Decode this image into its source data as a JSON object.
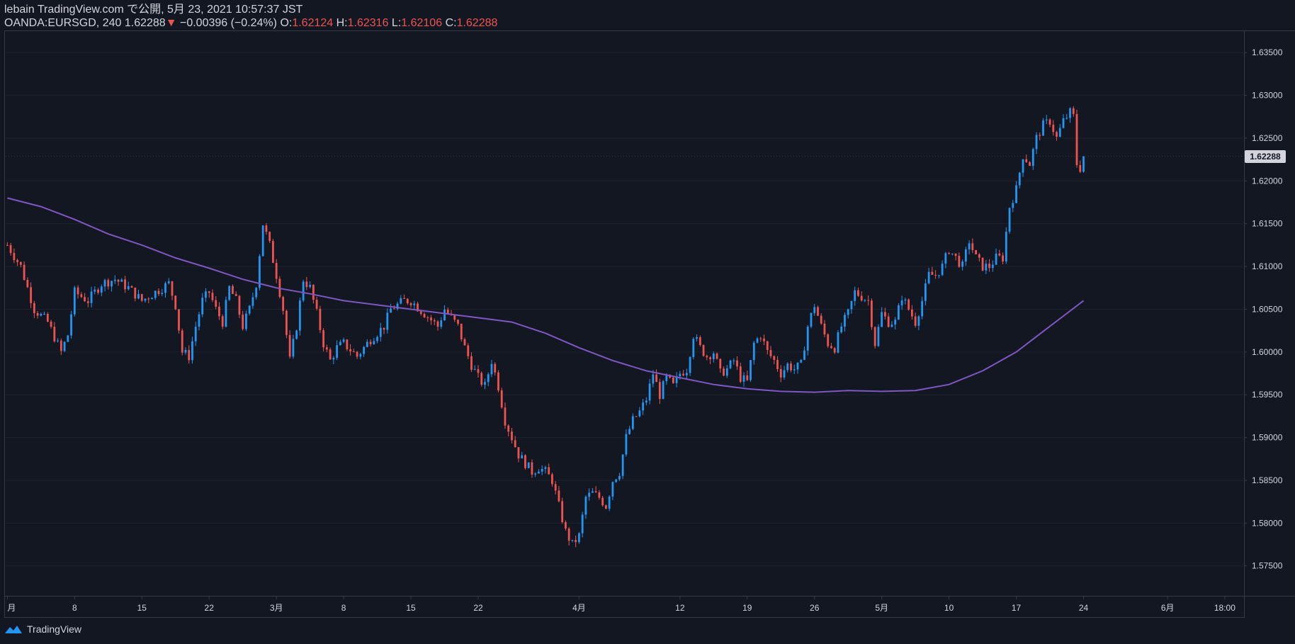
{
  "header": {
    "publisher_line": "lebain TradingView.com で公開, 5月 23, 2021 10:57:37 JST",
    "symbol": "OANDA:EURSGD, 240",
    "last_price": "1.62288",
    "change_arrow": "▼",
    "change": "−0.00396 (−0.24%)",
    "o_label": "O:",
    "o_value": "1.62124",
    "h_label": "H:",
    "h_value": "1.62316",
    "l_label": "L:",
    "l_value": "1.62106",
    "c_label": "C:",
    "c_value": "1.62288"
  },
  "footer": {
    "brand": "TradingView"
  },
  "colors": {
    "background": "#131722",
    "up_candle": "#2196f3",
    "down_candle": "#ef5350",
    "moving_average": "#7e57c2",
    "axis_text": "#d1d4dc",
    "grid": "#1e222d"
  },
  "chart_data": {
    "type": "line",
    "title": "",
    "symbol": "OANDA:EURSGD",
    "timeframe": "240",
    "ylim": [
      1.5715,
      1.6375
    ],
    "y_ticks": [
      "1.63500",
      "1.63000",
      "1.62500",
      "1.62000",
      "1.61500",
      "1.61000",
      "1.60500",
      "1.60000",
      "1.59500",
      "1.59000",
      "1.58500",
      "1.58000",
      "1.57500"
    ],
    "last_price_label": "1.62288",
    "x_ticks": [
      {
        "label": "月",
        "i": 0
      },
      {
        "label": "8",
        "i": 20
      },
      {
        "label": "15",
        "i": 40
      },
      {
        "label": "22",
        "i": 60
      },
      {
        "label": "3月",
        "i": 80
      },
      {
        "label": "8",
        "i": 100
      },
      {
        "label": "15",
        "i": 120
      },
      {
        "label": "22",
        "i": 140
      },
      {
        "label": "4月",
        "i": 170
      },
      {
        "label": "12",
        "i": 200
      },
      {
        "label": "19",
        "i": 220
      },
      {
        "label": "26",
        "i": 240
      },
      {
        "label": "5月",
        "i": 260
      },
      {
        "label": "10",
        "i": 280
      },
      {
        "label": "17",
        "i": 300
      },
      {
        "label": "24",
        "i": 320
      },
      {
        "label": "6月",
        "i": 345
      },
      {
        "label": "18:00",
        "i": 362
      }
    ],
    "total_slots": 368,
    "price_path": [
      [
        0,
        1.6125
      ],
      [
        4,
        1.61
      ],
      [
        8,
        1.605
      ],
      [
        12,
        1.6035
      ],
      [
        16,
        1.6
      ],
      [
        18,
        1.602
      ],
      [
        20,
        1.607
      ],
      [
        24,
        1.606
      ],
      [
        28,
        1.608
      ],
      [
        32,
        1.6085
      ],
      [
        36,
        1.6075
      ],
      [
        40,
        1.606
      ],
      [
        44,
        1.607
      ],
      [
        48,
        1.608
      ],
      [
        50,
        1.6055
      ],
      [
        52,
        1.6
      ],
      [
        54,
        1.5995
      ],
      [
        56,
        1.603
      ],
      [
        58,
        1.606
      ],
      [
        60,
        1.607
      ],
      [
        62,
        1.605
      ],
      [
        64,
        1.6035
      ],
      [
        66,
        1.6075
      ],
      [
        68,
        1.606
      ],
      [
        70,
        1.603
      ],
      [
        72,
        1.605
      ],
      [
        74,
        1.608
      ],
      [
        76,
        1.615
      ],
      [
        78,
        1.6125
      ],
      [
        80,
        1.609
      ],
      [
        82,
        1.605
      ],
      [
        84,
        1.599
      ],
      [
        86,
        1.603
      ],
      [
        88,
        1.6085
      ],
      [
        90,
        1.6075
      ],
      [
        92,
        1.6045
      ],
      [
        94,
        1.601
      ],
      [
        96,
        1.599
      ],
      [
        98,
        1.6005
      ],
      [
        100,
        1.601
      ],
      [
        104,
        1.5995
      ],
      [
        108,
        1.6015
      ],
      [
        112,
        1.603
      ],
      [
        114,
        1.605
      ],
      [
        118,
        1.606
      ],
      [
        120,
        1.606
      ],
      [
        124,
        1.6045
      ],
      [
        128,
        1.603
      ],
      [
        130,
        1.605
      ],
      [
        132,
        1.604
      ],
      [
        134,
        1.603
      ],
      [
        136,
        1.6005
      ],
      [
        138,
        1.5985
      ],
      [
        140,
        1.597
      ],
      [
        142,
        1.596
      ],
      [
        144,
        1.599
      ],
      [
        146,
        1.596
      ],
      [
        148,
        1.592
      ],
      [
        150,
        1.59
      ],
      [
        152,
        1.588
      ],
      [
        154,
        1.587
      ],
      [
        156,
        1.586
      ],
      [
        158,
        1.5865
      ],
      [
        160,
        1.586
      ],
      [
        162,
        1.585
      ],
      [
        164,
        1.582
      ],
      [
        166,
        1.579
      ],
      [
        168,
        1.5775
      ],
      [
        170,
        1.5785
      ],
      [
        172,
        1.583
      ],
      [
        174,
        1.5835
      ],
      [
        176,
        1.583
      ],
      [
        178,
        1.582
      ],
      [
        180,
        1.585
      ],
      [
        182,
        1.586
      ],
      [
        184,
        1.59
      ],
      [
        186,
        1.592
      ],
      [
        188,
        1.593
      ],
      [
        190,
        1.5945
      ],
      [
        192,
        1.5975
      ],
      [
        194,
        1.595
      ],
      [
        196,
        1.597
      ],
      [
        198,
        1.596
      ],
      [
        200,
        1.5975
      ],
      [
        202,
        1.598
      ],
      [
        204,
        1.602
      ],
      [
        206,
        1.6005
      ],
      [
        208,
        1.5995
      ],
      [
        210,
        1.6
      ],
      [
        212,
        1.5975
      ],
      [
        214,
        1.598
      ],
      [
        216,
        1.599
      ],
      [
        218,
        1.597
      ],
      [
        220,
        1.5965
      ],
      [
        222,
        1.601
      ],
      [
        224,
        1.602
      ],
      [
        226,
        1.6
      ],
      [
        228,
        1.599
      ],
      [
        230,
        1.5975
      ],
      [
        232,
        1.5985
      ],
      [
        234,
        1.598
      ],
      [
        236,
        1.5985
      ],
      [
        238,
        1.603
      ],
      [
        240,
        1.6055
      ],
      [
        242,
        1.603
      ],
      [
        244,
        1.601
      ],
      [
        246,
        1.6005
      ],
      [
        248,
        1.603
      ],
      [
        250,
        1.6045
      ],
      [
        252,
        1.607
      ],
      [
        254,
        1.6065
      ],
      [
        256,
        1.606
      ],
      [
        258,
        1.601
      ],
      [
        260,
        1.6045
      ],
      [
        262,
        1.6035
      ],
      [
        264,
        1.6035
      ],
      [
        266,
        1.6065
      ],
      [
        268,
        1.605
      ],
      [
        270,
        1.6035
      ],
      [
        272,
        1.606
      ],
      [
        274,
        1.609
      ],
      [
        276,
        1.609
      ],
      [
        278,
        1.61
      ],
      [
        280,
        1.612
      ],
      [
        282,
        1.611
      ],
      [
        284,
        1.61
      ],
      [
        286,
        1.613
      ],
      [
        288,
        1.611
      ],
      [
        290,
        1.61
      ],
      [
        292,
        1.61
      ],
      [
        294,
        1.611
      ],
      [
        296,
        1.611
      ],
      [
        298,
        1.617
      ],
      [
        300,
        1.619
      ],
      [
        302,
        1.623
      ],
      [
        304,
        1.622
      ],
      [
        306,
        1.625
      ],
      [
        308,
        1.6265
      ],
      [
        310,
        1.627
      ],
      [
        312,
        1.625
      ],
      [
        314,
        1.627
      ],
      [
        316,
        1.628
      ],
      [
        317,
        1.6275
      ],
      [
        318,
        1.622
      ],
      [
        319,
        1.6215
      ],
      [
        320,
        1.6229
      ]
    ],
    "moving_average": [
      [
        0,
        1.618
      ],
      [
        10,
        1.617
      ],
      [
        20,
        1.6155
      ],
      [
        30,
        1.6138
      ],
      [
        40,
        1.6125
      ],
      [
        50,
        1.611
      ],
      [
        60,
        1.6098
      ],
      [
        70,
        1.6085
      ],
      [
        80,
        1.6075
      ],
      [
        90,
        1.6068
      ],
      [
        100,
        1.606
      ],
      [
        110,
        1.6055
      ],
      [
        120,
        1.605
      ],
      [
        130,
        1.6045
      ],
      [
        140,
        1.604
      ],
      [
        150,
        1.6035
      ],
      [
        160,
        1.6022
      ],
      [
        170,
        1.6005
      ],
      [
        180,
        1.599
      ],
      [
        190,
        1.5978
      ],
      [
        200,
        1.597
      ],
      [
        210,
        1.5962
      ],
      [
        220,
        1.5957
      ],
      [
        230,
        1.5954
      ],
      [
        240,
        1.5953
      ],
      [
        250,
        1.5955
      ],
      [
        260,
        1.5954
      ],
      [
        270,
        1.5955
      ],
      [
        280,
        1.5962
      ],
      [
        290,
        1.5978
      ],
      [
        300,
        1.6
      ],
      [
        305,
        1.6015
      ],
      [
        310,
        1.603
      ],
      [
        315,
        1.6045
      ],
      [
        320,
        1.606
      ]
    ]
  }
}
